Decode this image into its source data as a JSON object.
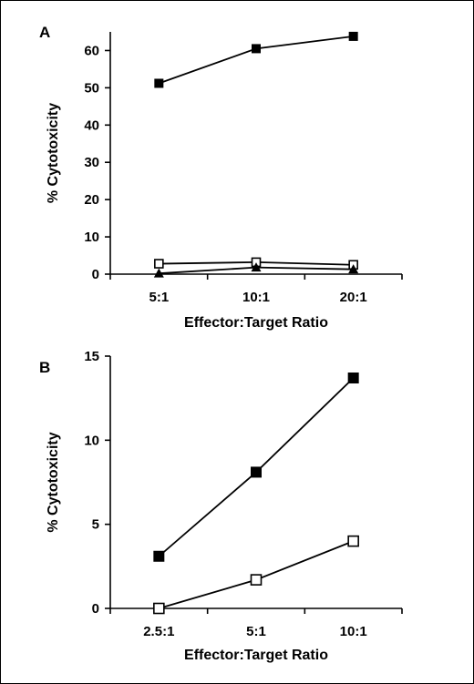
{
  "chart_data": [
    {
      "panel": "A",
      "type": "line",
      "categories": [
        "5:1",
        "10:1",
        "20:1"
      ],
      "xlabel": "Effector:Target Ratio",
      "ylabel": "% Cytotoxicity",
      "ylim": [
        0,
        65
      ],
      "yticks": [
        0,
        10,
        20,
        30,
        40,
        50,
        60
      ],
      "grid": false,
      "series": [
        {
          "marker": "filled-square",
          "values": [
            51.2,
            60.5,
            63.8
          ]
        },
        {
          "marker": "open-square",
          "values": [
            2.8,
            3.2,
            2.5
          ]
        },
        {
          "marker": "filled-triangle",
          "values": [
            0.2,
            1.8,
            1.3
          ]
        }
      ]
    },
    {
      "panel": "B",
      "type": "line",
      "categories": [
        "2.5:1",
        "5:1",
        "10:1"
      ],
      "xlabel": "Effector:Target Ratio",
      "ylabel": "% Cytotoxicity",
      "ylim": [
        0,
        15
      ],
      "yticks": [
        0,
        5,
        10,
        15
      ],
      "grid": false,
      "series": [
        {
          "marker": "filled-square",
          "values": [
            3.1,
            8.1,
            13.7
          ]
        },
        {
          "marker": "open-square",
          "values": [
            0.0,
            1.7,
            4.0
          ]
        }
      ]
    }
  ]
}
